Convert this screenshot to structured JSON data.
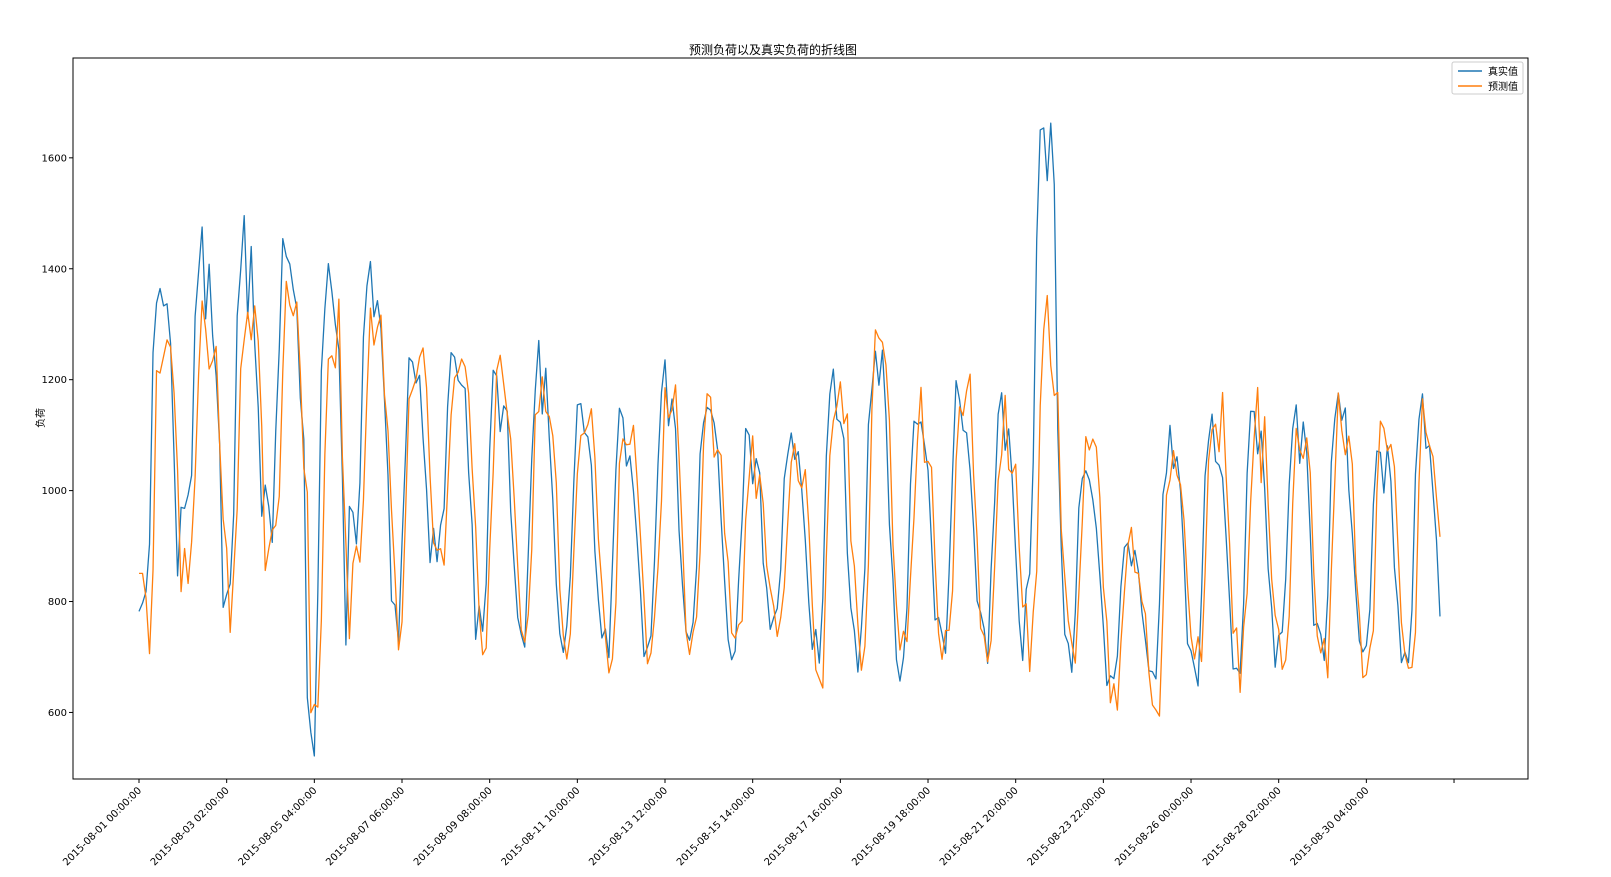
{
  "chart_data": {
    "type": "line",
    "title": "预测负荷以及真实负荷的折线图",
    "xlabel": "",
    "ylabel": "负荷",
    "ylim": [
      480,
      1780
    ],
    "y_ticks": [
      600,
      800,
      1000,
      1200,
      1400,
      1600
    ],
    "x_tick_labels": [
      "2015-08-01 00:00:00",
      "2015-08-03 02:00:00",
      "2015-08-05 04:00:00",
      "2015-08-07 06:00:00",
      "2015-08-09 08:00:00",
      "2015-08-11 10:00:00",
      "2015-08-13 12:00:00",
      "2015-08-15 14:00:00",
      "2015-08-17 16:00:00",
      "2015-08-19 18:00:00",
      "2015-08-21 20:00:00",
      "2015-08-23 22:00:00",
      "2015-08-26 00:00:00",
      "2015-08-28 02:00:00",
      "2015-08-30 04:00:00"
    ],
    "x_start": "2015-08-01 00:00:00",
    "x_step_hours": 2,
    "legend_position": "top-right",
    "grid": false,
    "series": [
      {
        "name": "真实值",
        "color": "#1f77b4",
        "daily_peaks": [
          1380,
          1430,
          1470,
          1460,
          1430,
          1380,
          1250,
          1240,
          1220,
          1240,
          1170,
          1130,
          1200,
          1170,
          1100,
          1090,
          1210,
          1260,
          1150,
          1190,
          1150,
          1730,
          1050,
          900,
          1090,
          1130,
          1140,
          1140,
          1150,
          1100,
          1140
        ],
        "daily_troughs": [
          770,
          940,
          810,
          940,
          560,
          930,
          760,
          900,
          750,
          750,
          740,
          730,
          720,
          740,
          720,
          750,
          700,
          720,
          700,
          730,
          720,
          730,
          690,
          660,
          660,
          680,
          700,
          700,
          700,
          680,
          700
        ]
      },
      {
        "name": "预测值",
        "color": "#ff7f0e",
        "daily_peaks": [
          1310,
          1340,
          1340,
          1340,
          1330,
          1320,
          1250,
          1250,
          1200,
          1220,
          1160,
          1130,
          1190,
          1160,
          1090,
          1080,
          1210,
          1280,
          1140,
          1200,
          1120,
          1280,
          1100,
          900,
          1080,
          1170,
          1130,
          1130,
          1150,
          1100,
          1130
        ],
        "daily_troughs": [
          760,
          880,
          800,
          890,
          590,
          890,
          770,
          880,
          740,
          730,
          720,
          710,
          710,
          730,
          710,
          740,
          700,
          710,
          700,
          710,
          710,
          700,
          690,
          620,
          630,
          670,
          690,
          690,
          690,
          680,
          680
        ]
      }
    ]
  }
}
